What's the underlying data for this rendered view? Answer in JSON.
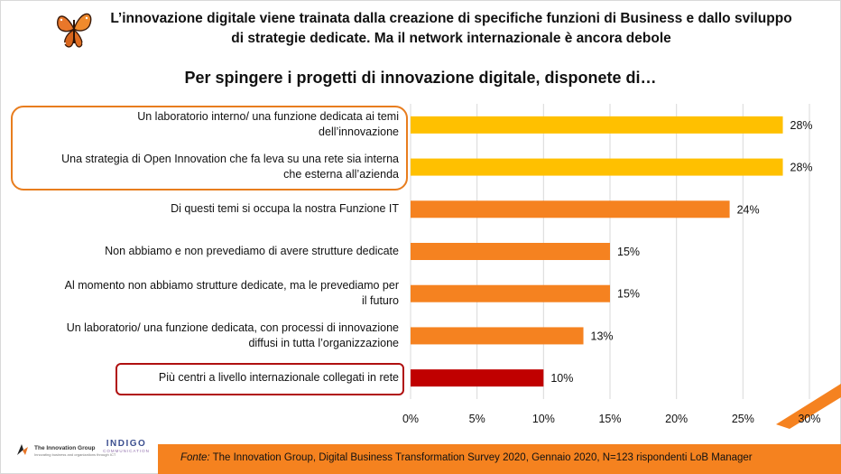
{
  "header": {
    "line1": "L’innovazione digitale viene trainata dalla creazione di specifiche funzioni di Business e dallo sviluppo",
    "line2": "di strategie dedicate. Ma il network internazionale è ancora debole"
  },
  "chart_data": {
    "type": "bar",
    "orientation": "horizontal",
    "title": "Per spingere i progetti di innovazione digitale, disponete di…",
    "categories": [
      [
        "Un laboratorio interno/ una funzione dedicata ai temi",
        "dell’innovazione"
      ],
      [
        "Una strategia di Open Innovation che fa leva su una rete sia interna",
        "che esterna all’azienda"
      ],
      [
        "Di questi temi si occupa la nostra Funzione IT"
      ],
      [
        "Non abbiamo e non prevediamo di avere strutture dedicate"
      ],
      [
        "Al momento non abbiamo strutture dedicate, ma le prevediamo per",
        "il futuro"
      ],
      [
        "Un laboratorio/ una funzione dedicata, con processi di innovazione",
        "diffusi in tutta l’organizzazione"
      ],
      [
        "Più centri a livello internazionale collegati in rete"
      ]
    ],
    "values": [
      28,
      28,
      24,
      15,
      15,
      13,
      10
    ],
    "value_labels": [
      "28%",
      "28%",
      "24%",
      "15%",
      "15%",
      "13%",
      "10%"
    ],
    "bar_colors": [
      "#ffc000",
      "#ffc000",
      "#f58220",
      "#f58220",
      "#f58220",
      "#f58220",
      "#c00000"
    ],
    "xlim": [
      0,
      30
    ],
    "xticks": [
      0,
      5,
      10,
      15,
      20,
      25,
      30
    ],
    "xtick_labels": [
      "0%",
      "5%",
      "10%",
      "15%",
      "20%",
      "25%",
      "30%"
    ],
    "grid": true,
    "legend": "none"
  },
  "footer": {
    "source_lead": "Fonte:",
    "source_text": " The Innovation Group, Digital Business Transformation Survey 2020, Gennaio 2020, N=123 rispondenti LoB Manager"
  },
  "logos": {
    "tig_name": "The Innovation Group",
    "tig_tagline": "Innovating business and organizations through ICT",
    "indigo_name": "INDIGO",
    "indigo_tagline": "COMMUNICATION"
  },
  "colors": {
    "accent_orange": "#f58220",
    "accent_yellow": "#ffc000",
    "accent_red": "#c00000",
    "highlight_orange": "#e87d1e",
    "highlight_red": "#b01010"
  }
}
